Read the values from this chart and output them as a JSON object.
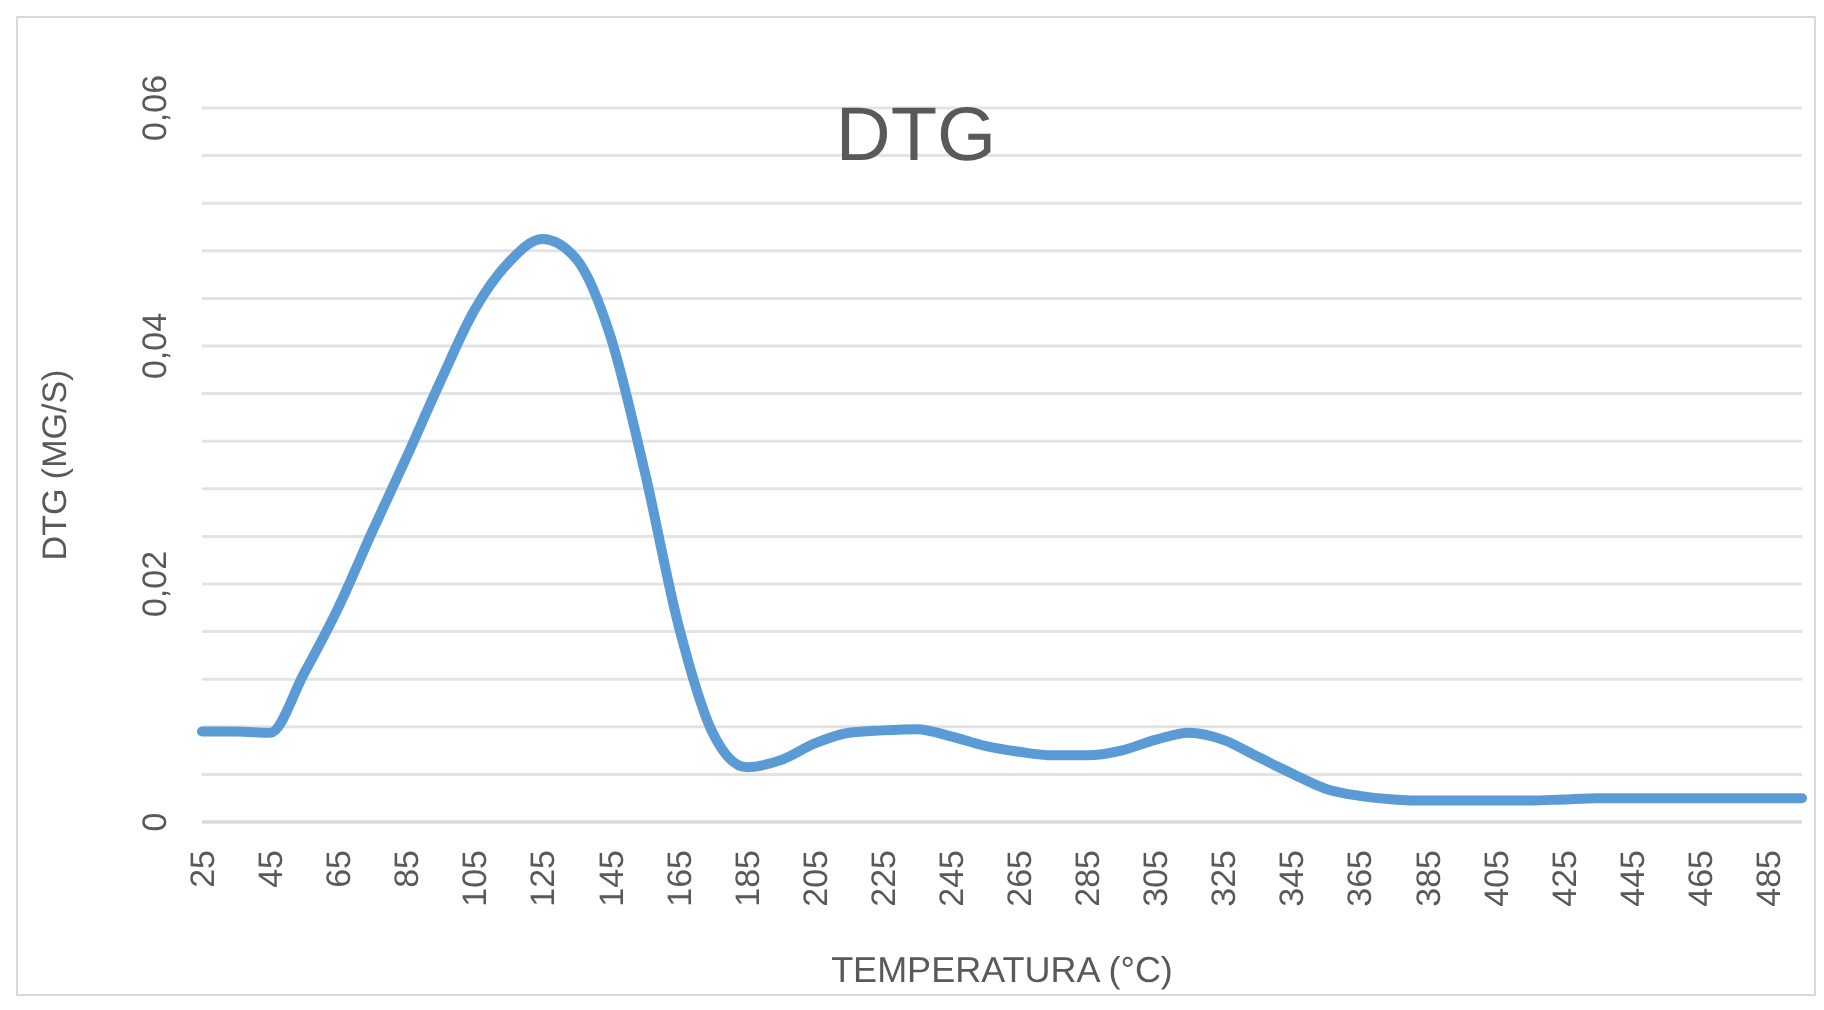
{
  "chart_data": {
    "type": "line",
    "title": "DTG",
    "xlabel": "TEMPERATURA (°C)",
    "ylabel": "DTG (MG/S)",
    "categories": [
      "25",
      null,
      "45",
      null,
      "65",
      null,
      "85",
      null,
      "105",
      null,
      "125",
      null,
      "145",
      null,
      "165",
      null,
      "185",
      null,
      "205",
      null,
      "225",
      null,
      "245",
      null,
      "265",
      null,
      "285",
      null,
      "305",
      null,
      "325",
      null,
      "345",
      null,
      "365",
      null,
      "385",
      null,
      "405",
      null,
      "425",
      null,
      "445",
      null,
      "465",
      null,
      "485",
      null
    ],
    "series": [
      {
        "color": "#5b9bd5",
        "values": [
          0.0076,
          0.0076,
          0.0075,
          0.0125,
          0.018,
          0.0244,
          0.0306,
          0.037,
          0.043,
          0.047,
          0.049,
          0.0473,
          0.0408,
          0.0295,
          0.0165,
          0.0075,
          0.0046,
          0.0052,
          0.0066,
          0.0075,
          0.0077,
          0.0078,
          0.0072,
          0.0064,
          0.0059,
          0.0056,
          0.0056,
          0.006,
          0.0069,
          0.0075,
          0.0069,
          0.0055,
          0.0041,
          0.0028,
          0.0022,
          0.0019,
          0.0018,
          0.0018,
          0.0018,
          0.0018,
          0.0019,
          0.002,
          0.002,
          0.002,
          0.002,
          0.002,
          0.002,
          0.002
        ]
      }
    ],
    "ylim": [
      0,
      0.06
    ],
    "yticks": [
      {
        "value": 0,
        "label": "0"
      },
      {
        "value": 0.004,
        "label": null
      },
      {
        "value": 0.008,
        "label": null
      },
      {
        "value": 0.012,
        "label": null
      },
      {
        "value": 0.016,
        "label": null
      },
      {
        "value": 0.02,
        "label": "0,02"
      },
      {
        "value": 0.024,
        "label": null
      },
      {
        "value": 0.028,
        "label": null
      },
      {
        "value": 0.032,
        "label": null
      },
      {
        "value": 0.036,
        "label": null
      },
      {
        "value": 0.04,
        "label": "0,04"
      },
      {
        "value": 0.044,
        "label": null
      },
      {
        "value": 0.048,
        "label": null
      },
      {
        "value": 0.052,
        "label": null
      },
      {
        "value": 0.056,
        "label": null
      },
      {
        "value": 0.06,
        "label": "0,06"
      }
    ],
    "grid": "y",
    "legend": false,
    "marker": "none",
    "line_style": "solid"
  }
}
